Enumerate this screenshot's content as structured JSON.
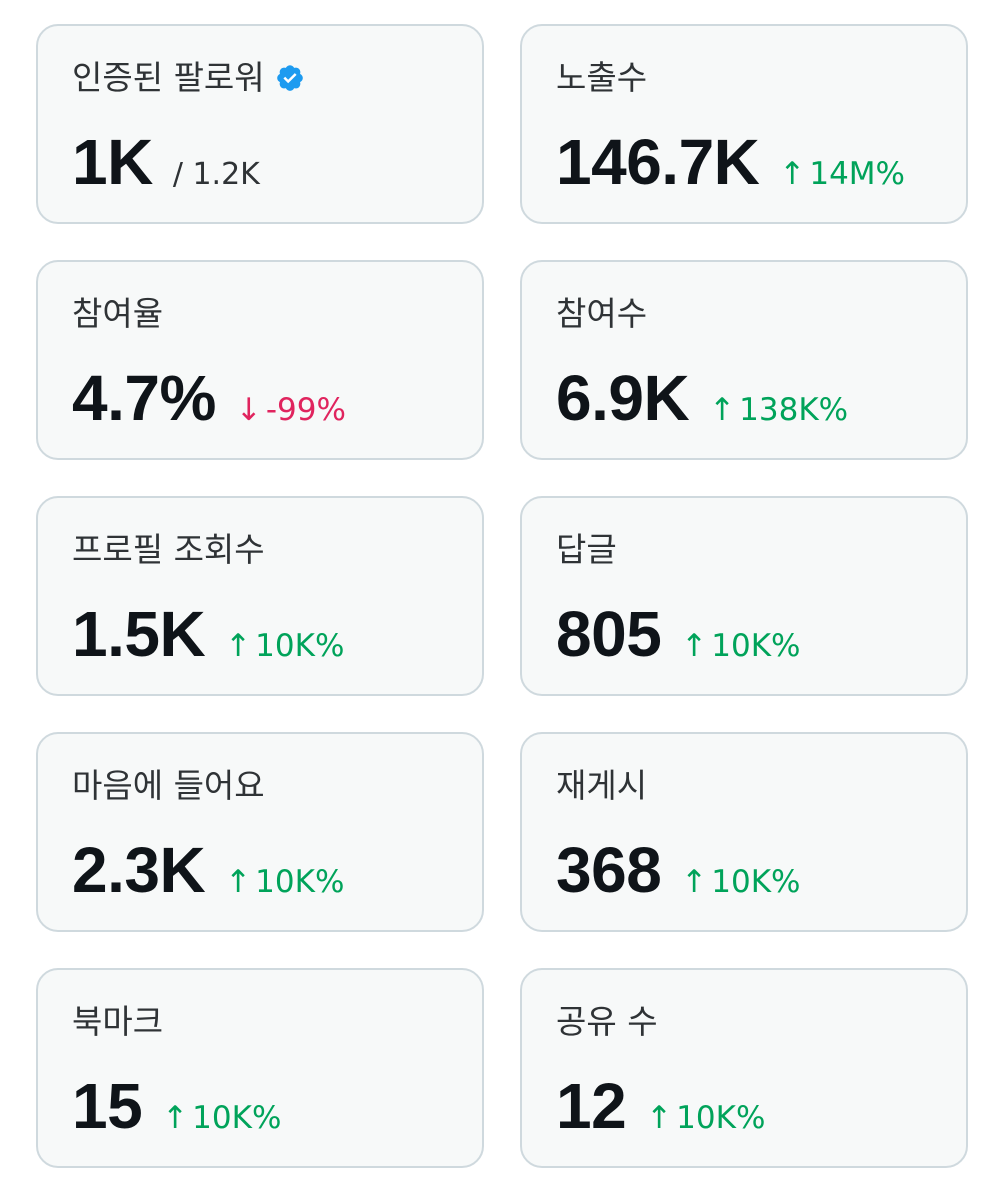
{
  "cards": [
    {
      "label": "인증된 팔로워",
      "value": "1K",
      "total": "/ 1.2K",
      "verified": true
    },
    {
      "label": "노출수",
      "value": "146.7K",
      "change": "14M%",
      "direction": "up",
      "arrow": "↑"
    },
    {
      "label": "참여율",
      "value": "4.7%",
      "change": "-99%",
      "direction": "down",
      "arrow": "↓"
    },
    {
      "label": "참여수",
      "value": "6.9K",
      "change": "138K%",
      "direction": "up",
      "arrow": "↑"
    },
    {
      "label": "프로필 조회수",
      "value": "1.5K",
      "change": "10K%",
      "direction": "up",
      "arrow": "↑"
    },
    {
      "label": "답글",
      "value": "805",
      "change": "10K%",
      "direction": "up",
      "arrow": "↑"
    },
    {
      "label": "마음에 들어요",
      "value": "2.3K",
      "change": "10K%",
      "direction": "up",
      "arrow": "↑"
    },
    {
      "label": "재게시",
      "value": "368",
      "change": "10K%",
      "direction": "up",
      "arrow": "↑"
    },
    {
      "label": "북마크",
      "value": "15",
      "change": "10K%",
      "direction": "up",
      "arrow": "↑"
    },
    {
      "label": "공유 수",
      "value": "12",
      "change": "10K%",
      "direction": "up",
      "arrow": "↑"
    }
  ],
  "colors": {
    "up": "#00a35a",
    "down": "#e0245e",
    "verified": "#1d9bf0",
    "card_bg": "#f7f9f9",
    "card_border": "#cfd9de"
  },
  "icons": {
    "verified": "verified-badge-icon",
    "up": "arrow-up-icon",
    "down": "arrow-down-icon"
  }
}
